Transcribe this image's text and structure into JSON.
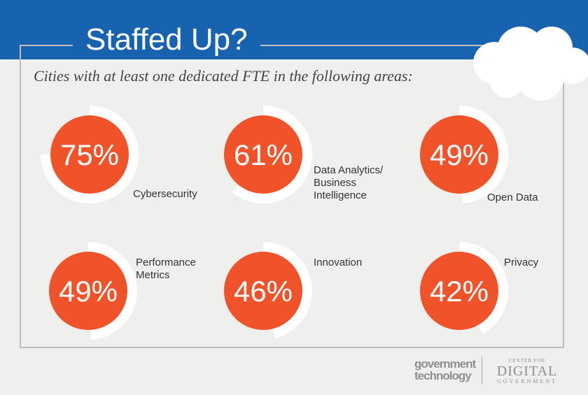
{
  "header": {
    "title": "Staffed Up?",
    "subtitle": "Cities with at least one dedicated FTE in the following areas:"
  },
  "colors": {
    "header_blue": "#1763b0",
    "circle_orange": "#f0532a",
    "ring_white": "#ffffff",
    "background": "#efefee"
  },
  "chart_data": {
    "type": "pie",
    "unit": "%",
    "items": [
      {
        "label": "Cybersecurity",
        "value": 75,
        "value_label": "75%"
      },
      {
        "label": "Data Analytics/\nBusiness\nIntelligence",
        "value": 61,
        "value_label": "61%"
      },
      {
        "label": "Open Data",
        "value": 49,
        "value_label": "49%"
      },
      {
        "label": "Performance\nMetrics",
        "value": 49,
        "value_label": "49%"
      },
      {
        "label": "Innovation",
        "value": 46,
        "value_label": "46%"
      },
      {
        "label": "Privacy",
        "value": 42,
        "value_label": "42%"
      }
    ]
  },
  "footer": {
    "logo_gt_line1": "government",
    "logo_gt_line2": "technology",
    "logo_cdg_top": "CENTER FOR",
    "logo_cdg_main": "DIGITAL",
    "logo_cdg_bottom": "GOVERNMENT"
  }
}
